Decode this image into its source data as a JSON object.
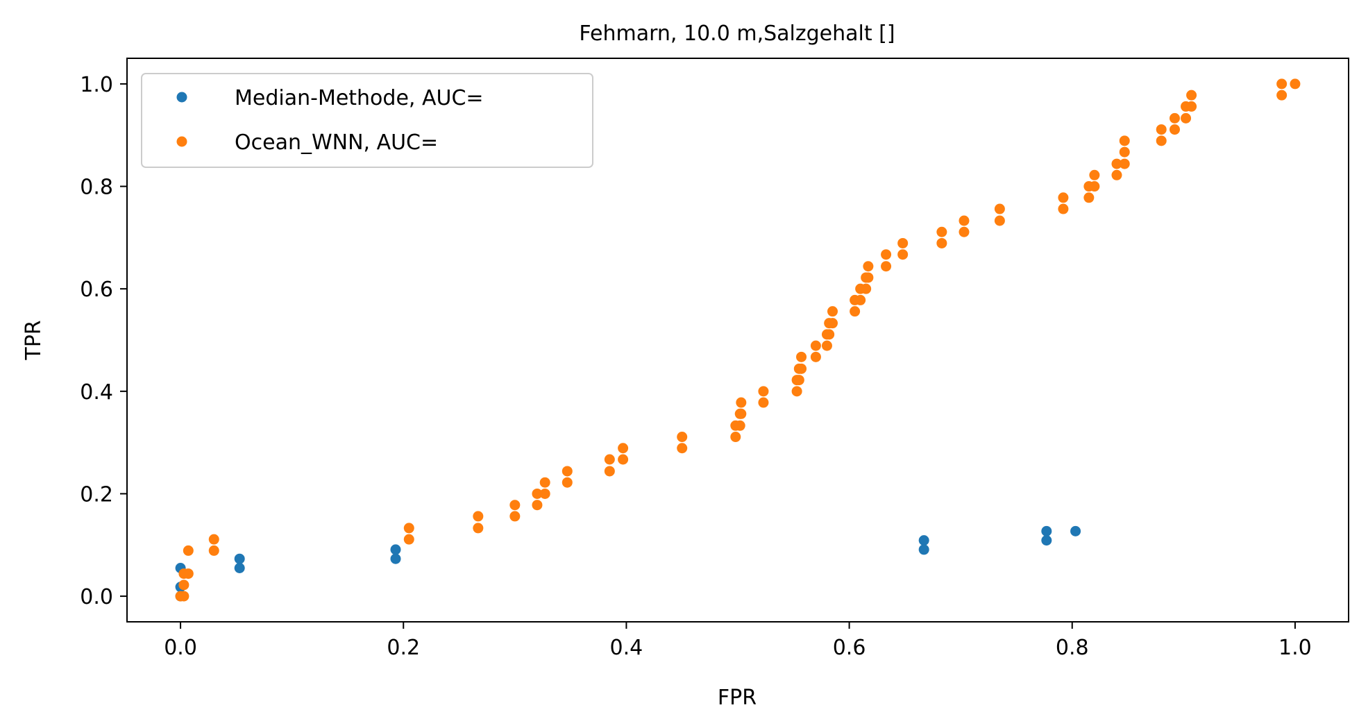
{
  "chart_data": {
    "type": "scatter",
    "title": "Fehmarn, 10.0 m,Salzgehalt []",
    "xlabel": "FPR",
    "ylabel": "TPR",
    "xlim": [
      -0.048,
      1.048
    ],
    "ylim": [
      -0.05,
      1.05
    ],
    "xticks": [
      "0.0",
      "0.2",
      "0.4",
      "0.6",
      "0.8",
      "1.0"
    ],
    "yticks": [
      "0.0",
      "0.2",
      "0.4",
      "0.6",
      "0.8",
      "1.0"
    ],
    "grid": false,
    "legend_position": "upper-left",
    "series": [
      {
        "name": "Median-Methode, AUC=",
        "color": "#1f77b4",
        "points": [
          [
            0.0,
            0.0
          ],
          [
            0.0,
            0.018
          ],
          [
            0.0,
            0.055
          ],
          [
            0.053,
            0.055
          ],
          [
            0.053,
            0.073
          ],
          [
            0.193,
            0.073
          ],
          [
            0.193,
            0.091
          ],
          [
            0.667,
            0.091
          ],
          [
            0.667,
            0.109
          ],
          [
            0.777,
            0.109
          ],
          [
            0.777,
            0.127
          ],
          [
            0.803,
            0.127
          ]
        ]
      },
      {
        "name": "Ocean_WNN, AUC=",
        "color": "#ff7f0e",
        "points": [
          [
            0.0,
            0.0
          ],
          [
            0.003,
            0.0
          ],
          [
            0.003,
            0.022
          ],
          [
            0.003,
            0.044
          ],
          [
            0.007,
            0.044
          ],
          [
            0.007,
            0.089
          ],
          [
            0.03,
            0.089
          ],
          [
            0.03,
            0.111
          ],
          [
            0.205,
            0.111
          ],
          [
            0.205,
            0.133
          ],
          [
            0.267,
            0.133
          ],
          [
            0.267,
            0.156
          ],
          [
            0.3,
            0.156
          ],
          [
            0.3,
            0.178
          ],
          [
            0.32,
            0.178
          ],
          [
            0.32,
            0.2
          ],
          [
            0.327,
            0.2
          ],
          [
            0.327,
            0.222
          ],
          [
            0.347,
            0.222
          ],
          [
            0.347,
            0.244
          ],
          [
            0.385,
            0.244
          ],
          [
            0.385,
            0.267
          ],
          [
            0.397,
            0.267
          ],
          [
            0.397,
            0.289
          ],
          [
            0.45,
            0.289
          ],
          [
            0.45,
            0.311
          ],
          [
            0.498,
            0.311
          ],
          [
            0.498,
            0.333
          ],
          [
            0.502,
            0.333
          ],
          [
            0.502,
            0.356
          ],
          [
            0.503,
            0.356
          ],
          [
            0.503,
            0.378
          ],
          [
            0.523,
            0.378
          ],
          [
            0.523,
            0.4
          ],
          [
            0.553,
            0.4
          ],
          [
            0.553,
            0.422
          ],
          [
            0.555,
            0.422
          ],
          [
            0.555,
            0.444
          ],
          [
            0.557,
            0.444
          ],
          [
            0.557,
            0.467
          ],
          [
            0.57,
            0.467
          ],
          [
            0.57,
            0.489
          ],
          [
            0.58,
            0.489
          ],
          [
            0.58,
            0.511
          ],
          [
            0.582,
            0.511
          ],
          [
            0.582,
            0.533
          ],
          [
            0.585,
            0.533
          ],
          [
            0.585,
            0.556
          ],
          [
            0.605,
            0.556
          ],
          [
            0.605,
            0.578
          ],
          [
            0.61,
            0.578
          ],
          [
            0.61,
            0.6
          ],
          [
            0.615,
            0.6
          ],
          [
            0.615,
            0.622
          ],
          [
            0.617,
            0.622
          ],
          [
            0.617,
            0.644
          ],
          [
            0.633,
            0.644
          ],
          [
            0.633,
            0.667
          ],
          [
            0.648,
            0.667
          ],
          [
            0.648,
            0.689
          ],
          [
            0.683,
            0.689
          ],
          [
            0.683,
            0.711
          ],
          [
            0.703,
            0.711
          ],
          [
            0.703,
            0.733
          ],
          [
            0.735,
            0.733
          ],
          [
            0.735,
            0.756
          ],
          [
            0.792,
            0.756
          ],
          [
            0.792,
            0.778
          ],
          [
            0.815,
            0.778
          ],
          [
            0.815,
            0.8
          ],
          [
            0.82,
            0.8
          ],
          [
            0.82,
            0.822
          ],
          [
            0.84,
            0.822
          ],
          [
            0.84,
            0.844
          ],
          [
            0.847,
            0.844
          ],
          [
            0.847,
            0.867
          ],
          [
            0.847,
            0.889
          ],
          [
            0.88,
            0.889
          ],
          [
            0.88,
            0.911
          ],
          [
            0.892,
            0.911
          ],
          [
            0.892,
            0.933
          ],
          [
            0.902,
            0.933
          ],
          [
            0.902,
            0.956
          ],
          [
            0.907,
            0.956
          ],
          [
            0.907,
            0.978
          ],
          [
            0.988,
            0.978
          ],
          [
            0.988,
            1.0
          ],
          [
            1.0,
            1.0
          ]
        ]
      }
    ]
  }
}
